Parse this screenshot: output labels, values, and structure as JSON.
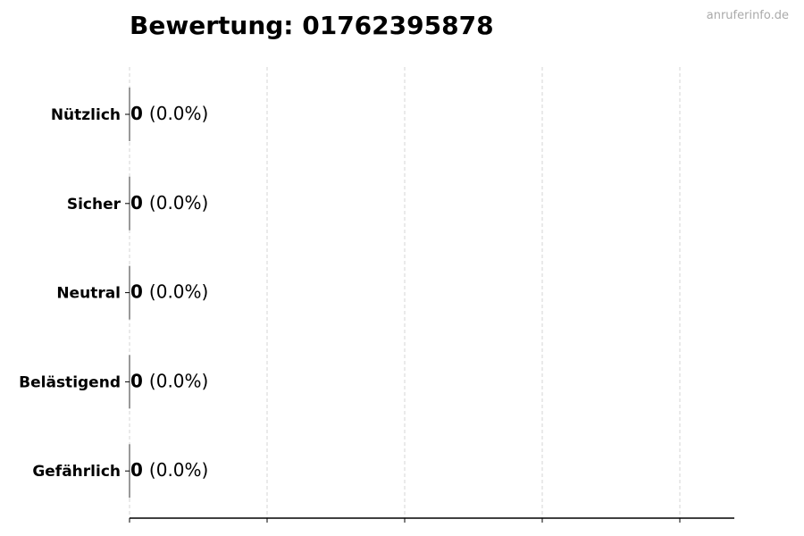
{
  "watermark": "anruferinfo.de",
  "chart_data": {
    "type": "bar",
    "orientation": "horizontal",
    "title": "Bewertung: 01762395878",
    "categories": [
      "Nützlich",
      "Sicher",
      "Neutral",
      "Belästigend",
      "Gefährlich"
    ],
    "values": [
      0,
      0,
      0,
      0,
      0
    ],
    "percent_labels": [
      "(0.0%)",
      "(0.0%)",
      "(0.0%)",
      "(0.0%)",
      "(0.0%)"
    ],
    "xlabel": "",
    "ylabel": "",
    "grid": "x-dashed",
    "x_tick_labels_shown": false
  }
}
